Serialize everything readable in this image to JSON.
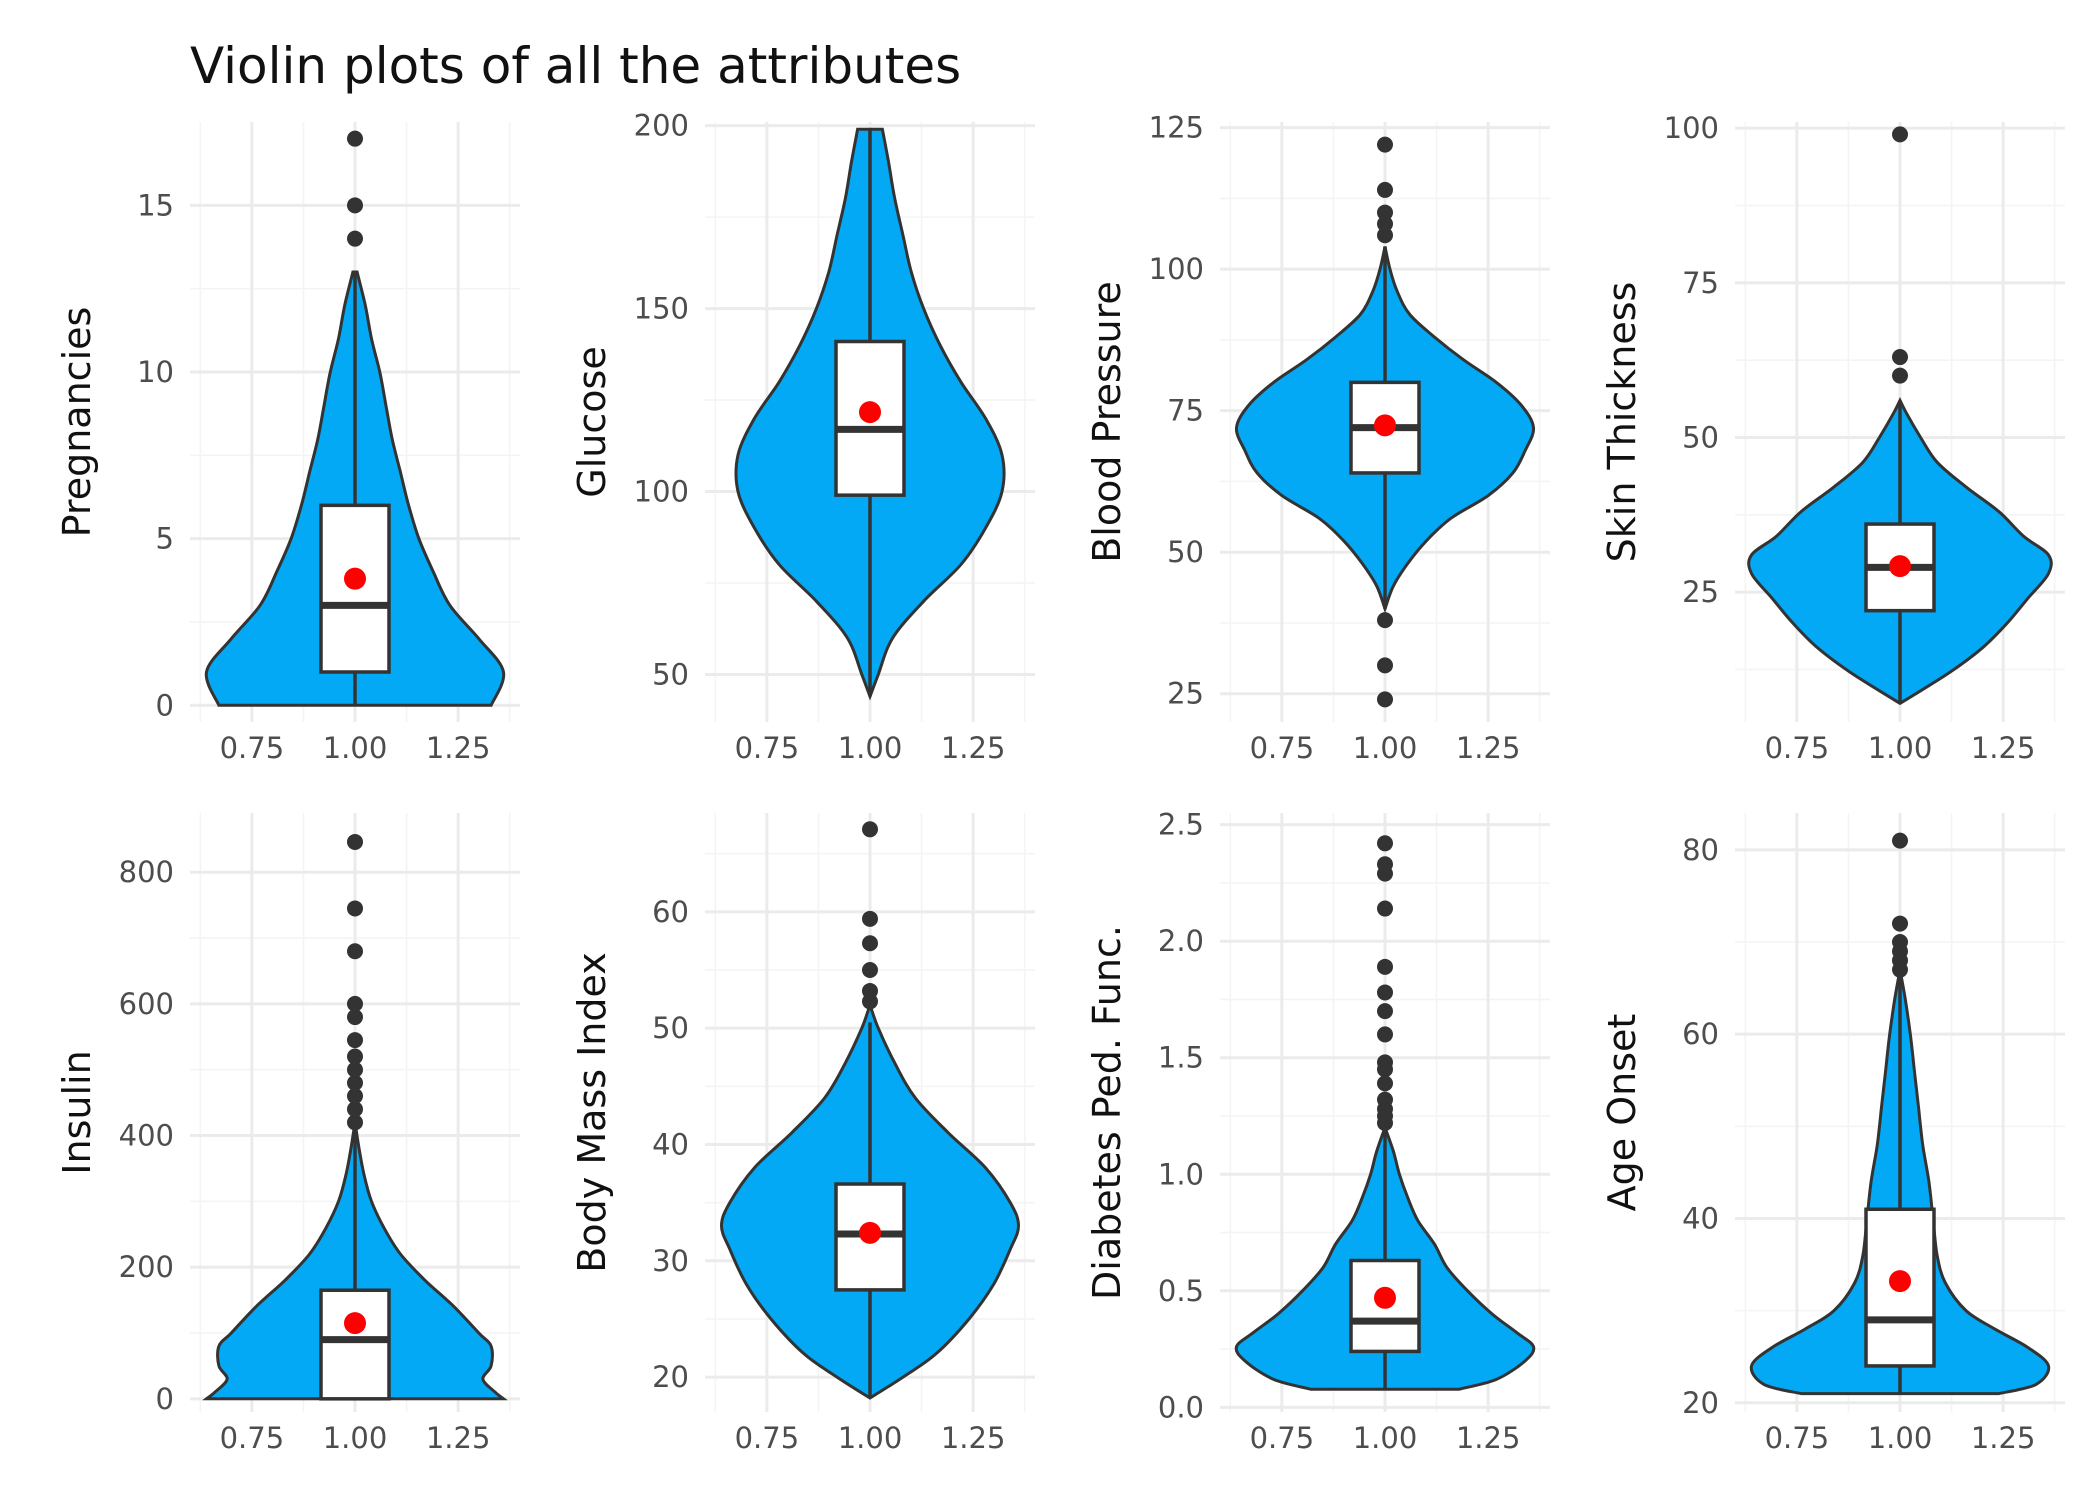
{
  "chart_data": {
    "type": "violin",
    "title": "Violin plots of all the attributes",
    "colors": {
      "fill": "#03A9F4",
      "outline": "#333333",
      "mean": "#FF0000",
      "box": "#FFFFFF",
      "grid": "#EBEBEB"
    },
    "x_tick_labels": [
      "0.75",
      "1.00",
      "1.25"
    ],
    "panels": [
      {
        "name": "pregnancies",
        "ylabel": "Pregnancies",
        "ylim": [
          -0.5,
          17.5
        ],
        "yticks": [
          0,
          5,
          10,
          15
        ],
        "violin": {
          "y": [
            0,
            1,
            2,
            3,
            4,
            5,
            6,
            7,
            8,
            9,
            10,
            11,
            12,
            13
          ],
          "half_width": [
            0.33,
            0.36,
            0.3,
            0.23,
            0.19,
            0.155,
            0.13,
            0.11,
            0.09,
            0.075,
            0.06,
            0.04,
            0.025,
            0.005
          ]
        },
        "box": {
          "q1": 1,
          "median": 3,
          "q3": 6,
          "whisker_low": 0,
          "whisker_high": 13
        },
        "mean": 3.8,
        "outliers": [
          14,
          15,
          17
        ]
      },
      {
        "name": "glucose",
        "ylabel": "Glucose",
        "ylim": [
          37,
          201
        ],
        "yticks": [
          50,
          100,
          150,
          200
        ],
        "violin": {
          "y": [
            44,
            50,
            60,
            70,
            80,
            90,
            100,
            110,
            120,
            130,
            140,
            150,
            160,
            170,
            180,
            190,
            199
          ],
          "half_width": [
            0.0,
            0.02,
            0.055,
            0.13,
            0.22,
            0.28,
            0.32,
            0.32,
            0.28,
            0.22,
            0.17,
            0.13,
            0.1,
            0.08,
            0.06,
            0.045,
            0.03
          ]
        },
        "box": {
          "q1": 99,
          "median": 117,
          "q3": 141,
          "whisker_low": 44,
          "whisker_high": 199
        },
        "mean": 121.7,
        "outliers": []
      },
      {
        "name": "blood-pressure",
        "ylabel": "Blood Pressure",
        "ylim": [
          20,
          126
        ],
        "yticks": [
          25,
          50,
          75,
          100,
          125
        ],
        "violin": {
          "y": [
            40,
            44,
            48,
            52,
            56,
            60,
            64,
            68,
            72,
            76,
            80,
            84,
            88,
            92,
            96,
            100,
            104
          ],
          "half_width": [
            0.0,
            0.02,
            0.055,
            0.1,
            0.16,
            0.25,
            0.31,
            0.34,
            0.36,
            0.33,
            0.27,
            0.19,
            0.12,
            0.06,
            0.03,
            0.012,
            0.0
          ]
        },
        "box": {
          "q1": 64,
          "median": 72,
          "q3": 80,
          "whisker_low": 40,
          "whisker_high": 104
        },
        "mean": 72.4,
        "outliers": [
          24,
          30,
          38,
          106,
          108,
          110,
          114,
          122
        ]
      },
      {
        "name": "skin-thickness",
        "ylabel": "Skin Thickness",
        "ylim": [
          4,
          101
        ],
        "yticks": [
          25,
          50,
          75,
          100
        ],
        "violin": {
          "y": [
            7,
            12,
            16,
            20,
            24,
            28,
            31,
            34,
            38,
            42,
            46,
            50,
            54,
            56
          ],
          "half_width": [
            0.0,
            0.12,
            0.2,
            0.26,
            0.31,
            0.36,
            0.36,
            0.3,
            0.24,
            0.16,
            0.09,
            0.05,
            0.015,
            0.0
          ]
        },
        "box": {
          "q1": 22,
          "median": 29,
          "q3": 36,
          "whisker_low": 7,
          "whisker_high": 56
        },
        "mean": 29.2,
        "outliers": [
          60,
          63,
          99
        ]
      },
      {
        "name": "insulin",
        "ylabel": "Insulin",
        "ylim": [
          -20,
          890
        ],
        "yticks": [
          0,
          200,
          400,
          600,
          800
        ],
        "violin": {
          "y": [
            0,
            10,
            30,
            50,
            80,
            100,
            140,
            180,
            220,
            260,
            300,
            340,
            380,
            420
          ],
          "half_width": [
            0.36,
            0.34,
            0.31,
            0.33,
            0.33,
            0.3,
            0.24,
            0.17,
            0.11,
            0.07,
            0.04,
            0.022,
            0.01,
            0.0
          ]
        },
        "box": {
          "q1": 0,
          "median": 90,
          "q3": 165,
          "whisker_low": 0,
          "whisker_high": 415
        },
        "mean": 115,
        "outliers": [
          420,
          440,
          460,
          480,
          500,
          520,
          545,
          580,
          600,
          680,
          745,
          846
        ]
      },
      {
        "name": "body-mass-index",
        "ylabel": "Body Mass Index",
        "ylim": [
          17,
          68.5
        ],
        "yticks": [
          20,
          30,
          40,
          50,
          60
        ],
        "violin": {
          "y": [
            18.2,
            20,
            22,
            25,
            28,
            31,
            33,
            35,
            38,
            41,
            44,
            47,
            50,
            52
          ],
          "half_width": [
            0.0,
            0.08,
            0.16,
            0.24,
            0.3,
            0.34,
            0.36,
            0.34,
            0.28,
            0.19,
            0.11,
            0.06,
            0.02,
            0.0
          ]
        },
        "box": {
          "q1": 27.5,
          "median": 32.3,
          "q3": 36.6,
          "whisker_low": 18.2,
          "whisker_high": 50.5
        },
        "mean": 32.4,
        "outliers": [
          52.3,
          53.2,
          55,
          57.3,
          59.4,
          67.1
        ]
      },
      {
        "name": "diabetes-pedigree",
        "ylabel": "Diabetes Ped. Func.",
        "ylim": [
          -0.02,
          2.55
        ],
        "yticks": [
          0.0,
          0.5,
          1.0,
          1.5,
          2.0,
          2.5
        ],
        "violin": {
          "y": [
            0.078,
            0.12,
            0.2,
            0.26,
            0.32,
            0.4,
            0.5,
            0.6,
            0.7,
            0.8,
            0.9,
            1.0,
            1.1,
            1.2
          ],
          "half_width": [
            0.18,
            0.27,
            0.34,
            0.36,
            0.32,
            0.26,
            0.2,
            0.15,
            0.12,
            0.08,
            0.055,
            0.035,
            0.02,
            0.0
          ]
        },
        "box": {
          "q1": 0.24,
          "median": 0.37,
          "q3": 0.63,
          "whisker_low": 0.078,
          "whisker_high": 1.19
        },
        "mean": 0.47,
        "outliers": [
          1.22,
          1.25,
          1.28,
          1.32,
          1.39,
          1.45,
          1.48,
          1.6,
          1.7,
          1.78,
          1.89,
          2.14,
          2.29,
          2.33,
          2.42
        ]
      },
      {
        "name": "age-onset",
        "ylabel": "Age Onset",
        "ylim": [
          19,
          84
        ],
        "yticks": [
          20,
          40,
          60,
          80
        ],
        "violin": {
          "y": [
            21,
            22,
            24,
            26,
            28,
            30,
            33,
            36,
            40,
            44,
            48,
            52,
            56,
            60,
            64,
            67
          ],
          "half_width": [
            0.24,
            0.33,
            0.36,
            0.31,
            0.23,
            0.16,
            0.11,
            0.09,
            0.08,
            0.07,
            0.055,
            0.045,
            0.035,
            0.025,
            0.012,
            0.0
          ]
        },
        "box": {
          "q1": 24,
          "median": 29,
          "q3": 41,
          "whisker_low": 21,
          "whisker_high": 66
        },
        "mean": 33.2,
        "outliers": [
          67,
          68,
          69,
          70,
          72,
          81
        ]
      }
    ]
  }
}
